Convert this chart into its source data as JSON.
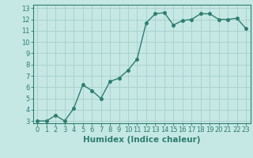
{
  "x": [
    0,
    1,
    2,
    3,
    4,
    5,
    6,
    7,
    8,
    9,
    10,
    11,
    12,
    13,
    14,
    15,
    16,
    17,
    18,
    19,
    20,
    21,
    22,
    23
  ],
  "y": [
    3.0,
    3.0,
    3.5,
    3.0,
    4.1,
    6.2,
    5.7,
    5.0,
    6.5,
    6.8,
    7.5,
    8.5,
    11.7,
    12.5,
    12.6,
    11.5,
    11.9,
    12.0,
    12.5,
    12.5,
    12.0,
    12.0,
    12.1,
    11.2
  ],
  "xlabel": "Humidex (Indice chaleur)",
  "ylim": [
    3,
    13
  ],
  "xlim": [
    0,
    23
  ],
  "yticks": [
    3,
    4,
    5,
    6,
    7,
    8,
    9,
    10,
    11,
    12,
    13
  ],
  "xticks": [
    0,
    1,
    2,
    3,
    4,
    5,
    6,
    7,
    8,
    9,
    10,
    11,
    12,
    13,
    14,
    15,
    16,
    17,
    18,
    19,
    20,
    21,
    22,
    23
  ],
  "line_color": "#2e7d6e",
  "marker_size": 2.5,
  "bg_color": "#c5e8e5",
  "grid_color": "#a8ceca",
  "xlabel_fontsize": 7.5,
  "tick_fontsize": 6,
  "line_width": 1.0
}
